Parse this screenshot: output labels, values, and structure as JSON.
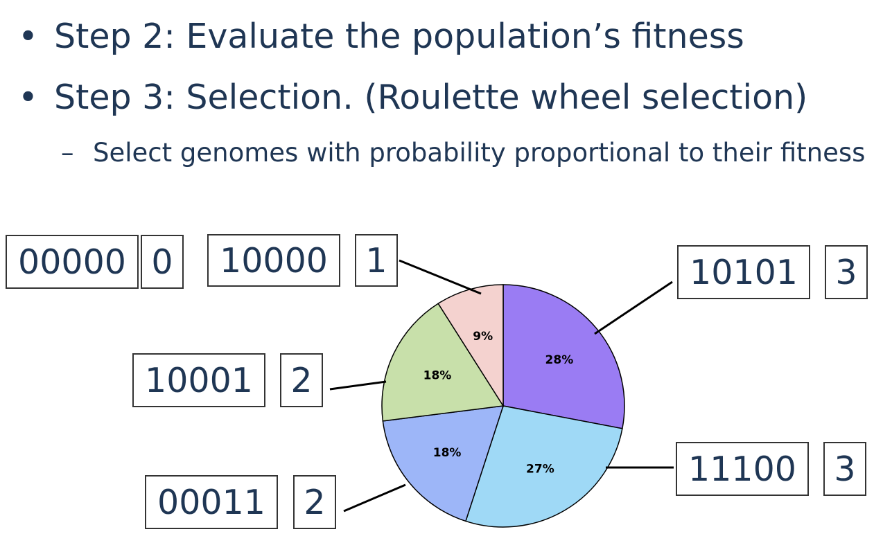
{
  "bullets": [
    {
      "marker": "•",
      "text": "Step 2: Evaluate the population’s fitness"
    },
    {
      "marker": "•",
      "text": "Step 3: Selection. (Roulette wheel selection)"
    }
  ],
  "sub_bullets": [
    {
      "marker": "–",
      "text": "Select genomes with probability proportional to their fitness"
    }
  ],
  "genomes": [
    {
      "genome": "00000",
      "fitness": "0"
    },
    {
      "genome": "10000",
      "fitness": "1"
    },
    {
      "genome": "10101",
      "fitness": "3"
    },
    {
      "genome": "10001",
      "fitness": "2"
    },
    {
      "genome": "11100",
      "fitness": "3"
    },
    {
      "genome": "00011",
      "fitness": "2"
    }
  ],
  "chart_data": {
    "type": "pie",
    "slices": [
      {
        "genome": "10101",
        "value": 28,
        "label": "28%",
        "color": "#9a7cf3"
      },
      {
        "genome": "11100",
        "value": 27,
        "label": "27%",
        "color": "#9fd9f6"
      },
      {
        "genome": "00011",
        "value": 18,
        "label": "18%",
        "color": "#9db6f8"
      },
      {
        "genome": "10001",
        "value": 18,
        "label": "18%",
        "color": "#c8e0aa"
      },
      {
        "genome": "10000",
        "value": 9,
        "label": "9%",
        "color": "#f4d2cf"
      }
    ],
    "start_angle_deg": 0,
    "direction": "clockwise"
  }
}
